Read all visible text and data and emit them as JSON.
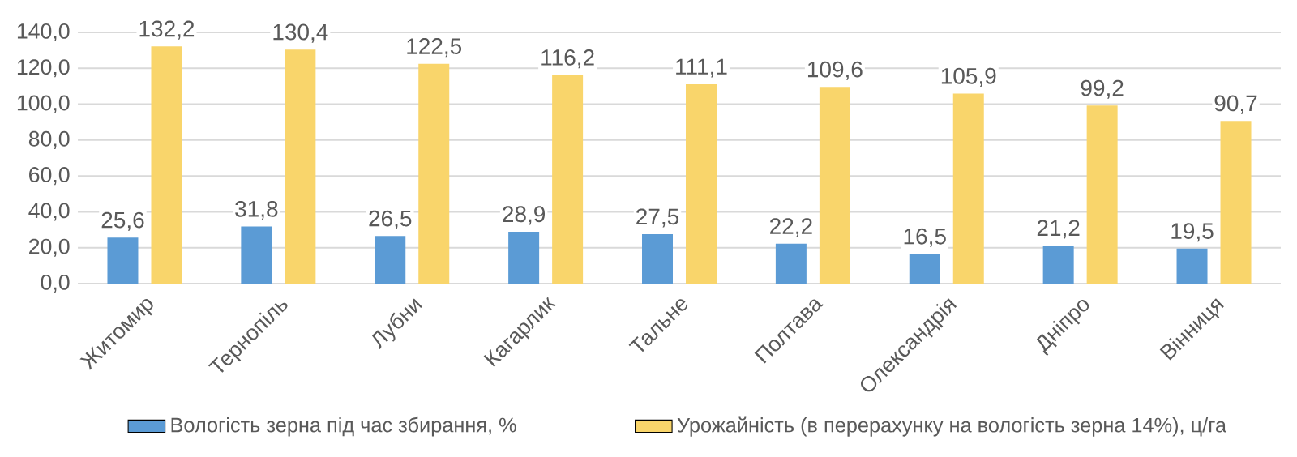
{
  "chart_data": {
    "type": "bar",
    "categories": [
      "Житомир",
      "Тернопіль",
      "Лубни",
      "Кагарлик",
      "Тальне",
      "Полтава",
      "Олександрія",
      "Дніпро",
      "Вінниця"
    ],
    "series": [
      {
        "name": "Вологість зерна під час збирання, %",
        "color": "#5b9bd5",
        "values": [
          25.6,
          31.8,
          26.5,
          28.9,
          27.5,
          22.2,
          16.5,
          21.2,
          19.5
        ],
        "value_labels": [
          "25,6",
          "31,8",
          "26,5",
          "28,9",
          "27,5",
          "22,2",
          "16,5",
          "21,2",
          "19,5"
        ]
      },
      {
        "name": "Урожайність  (в перерахунку на вологість зерна 14%), ц/га",
        "color": "#f9d56b",
        "values": [
          132.2,
          130.4,
          122.5,
          116.2,
          111.1,
          109.6,
          105.9,
          99.2,
          90.7
        ],
        "value_labels": [
          "132,2",
          "130,4",
          "122,5",
          "116,2",
          "111,1",
          "109,6",
          "105,9",
          "99,2",
          "90,7"
        ]
      }
    ],
    "ylim": [
      0,
      140
    ],
    "yticks": [
      {
        "value": 0,
        "label": "0,0"
      },
      {
        "value": 20,
        "label": "20,0"
      },
      {
        "value": 40,
        "label": "40,0"
      },
      {
        "value": 60,
        "label": "60,0"
      },
      {
        "value": 80,
        "label": "80,0"
      },
      {
        "value": 100,
        "label": "100,0"
      },
      {
        "value": 120,
        "label": "120,0"
      },
      {
        "value": 140,
        "label": "140,0"
      }
    ],
    "grid": "y",
    "legend": "bottom"
  }
}
